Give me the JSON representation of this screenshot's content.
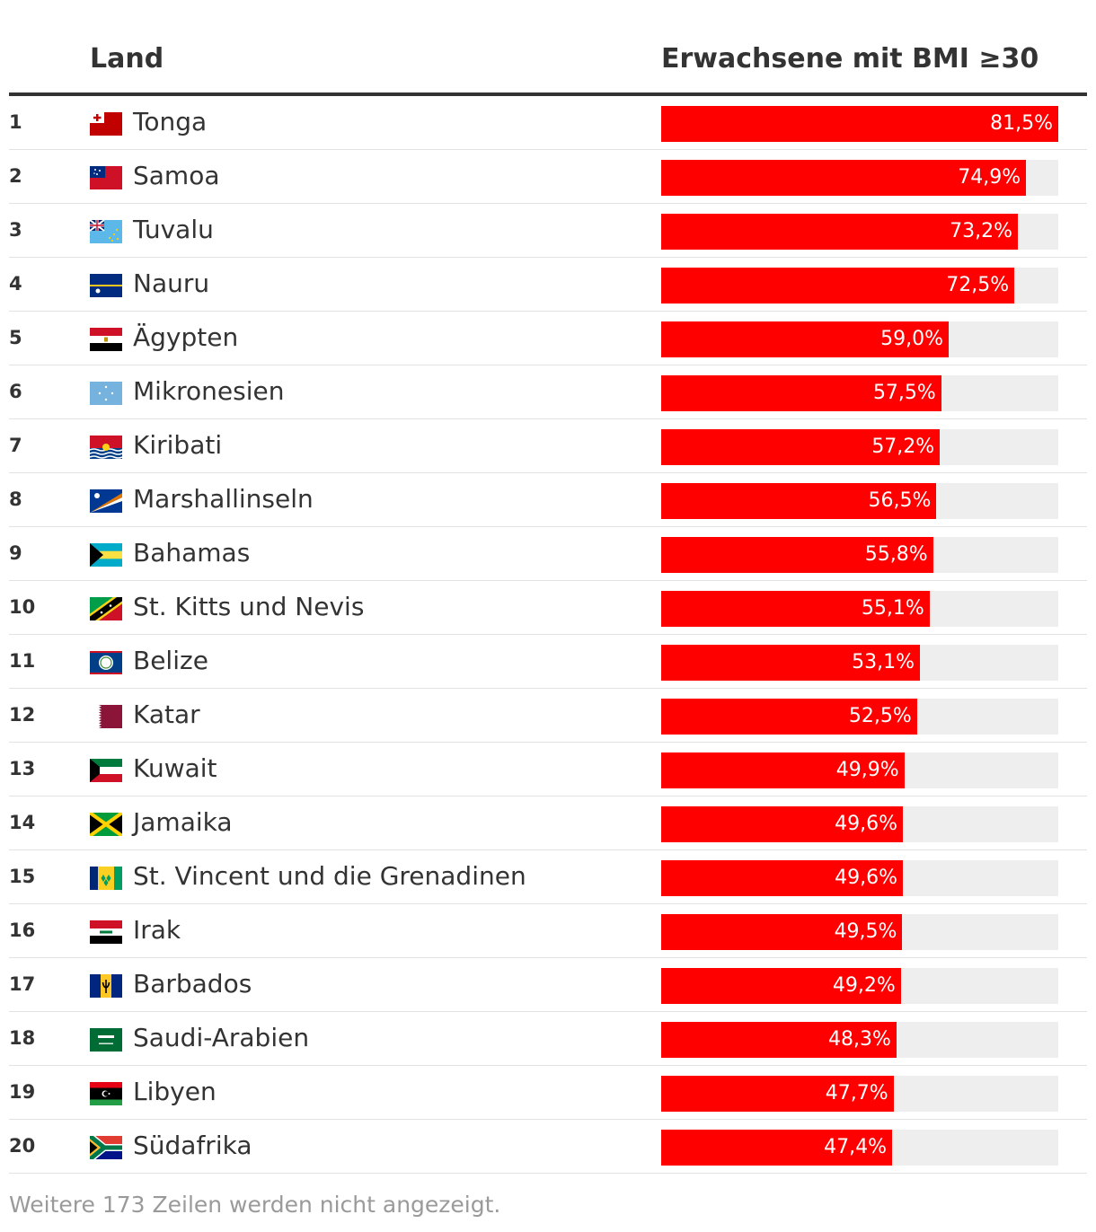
{
  "header": {
    "col_land": "Land",
    "col_value": "Erwachsene mit BMI ≥30"
  },
  "footer": {
    "note": "Weitere 173 Zeilen werden nicht angezeigt."
  },
  "colors": {
    "bar": "#ff0000",
    "track": "#eeeeee",
    "text": "#333333"
  },
  "chart_data": {
    "type": "table",
    "title": "",
    "xlabel": "",
    "ylabel": "Erwachsene mit BMI ≥30",
    "xlim": [
      0,
      81.5
    ],
    "unit": "%",
    "rows": [
      {
        "rank": "1",
        "country": "Tonga",
        "flag": "tonga-flag-icon",
        "value": 81.5,
        "label": "81,5%"
      },
      {
        "rank": "2",
        "country": "Samoa",
        "flag": "samoa-flag-icon",
        "value": 74.9,
        "label": "74,9%"
      },
      {
        "rank": "3",
        "country": "Tuvalu",
        "flag": "tuvalu-flag-icon",
        "value": 73.2,
        "label": "73,2%"
      },
      {
        "rank": "4",
        "country": "Nauru",
        "flag": "nauru-flag-icon",
        "value": 72.5,
        "label": "72,5%"
      },
      {
        "rank": "5",
        "country": "Ägypten",
        "flag": "egypt-flag-icon",
        "value": 59.0,
        "label": "59,0%"
      },
      {
        "rank": "6",
        "country": "Mikronesien",
        "flag": "micronesia-flag-icon",
        "value": 57.5,
        "label": "57,5%"
      },
      {
        "rank": "7",
        "country": "Kiribati",
        "flag": "kiribati-flag-icon",
        "value": 57.2,
        "label": "57,2%"
      },
      {
        "rank": "8",
        "country": "Marshallinseln",
        "flag": "marshall-islands-flag-icon",
        "value": 56.5,
        "label": "56,5%"
      },
      {
        "rank": "9",
        "country": "Bahamas",
        "flag": "bahamas-flag-icon",
        "value": 55.8,
        "label": "55,8%"
      },
      {
        "rank": "10",
        "country": "St. Kitts und Nevis",
        "flag": "saint-kitts-and-nevis-flag-icon",
        "value": 55.1,
        "label": "55,1%"
      },
      {
        "rank": "11",
        "country": "Belize",
        "flag": "belize-flag-icon",
        "value": 53.1,
        "label": "53,1%"
      },
      {
        "rank": "12",
        "country": "Katar",
        "flag": "qatar-flag-icon",
        "value": 52.5,
        "label": "52,5%"
      },
      {
        "rank": "13",
        "country": "Kuwait",
        "flag": "kuwait-flag-icon",
        "value": 49.9,
        "label": "49,9%"
      },
      {
        "rank": "14",
        "country": "Jamaika",
        "flag": "jamaica-flag-icon",
        "value": 49.6,
        "label": "49,6%"
      },
      {
        "rank": "15",
        "country": "St. Vincent und die Grenadinen",
        "flag": "saint-vincent-and-the-grenadines-flag-icon",
        "value": 49.6,
        "label": "49,6%"
      },
      {
        "rank": "16",
        "country": "Irak",
        "flag": "iraq-flag-icon",
        "value": 49.5,
        "label": "49,5%"
      },
      {
        "rank": "17",
        "country": "Barbados",
        "flag": "barbados-flag-icon",
        "value": 49.2,
        "label": "49,2%"
      },
      {
        "rank": "18",
        "country": "Saudi-Arabien",
        "flag": "saudi-arabia-flag-icon",
        "value": 48.3,
        "label": "48,3%"
      },
      {
        "rank": "19",
        "country": "Libyen",
        "flag": "libya-flag-icon",
        "value": 47.7,
        "label": "47,7%"
      },
      {
        "rank": "20",
        "country": "Südafrika",
        "flag": "south-africa-flag-icon",
        "value": 47.4,
        "label": "47,4%"
      }
    ]
  }
}
